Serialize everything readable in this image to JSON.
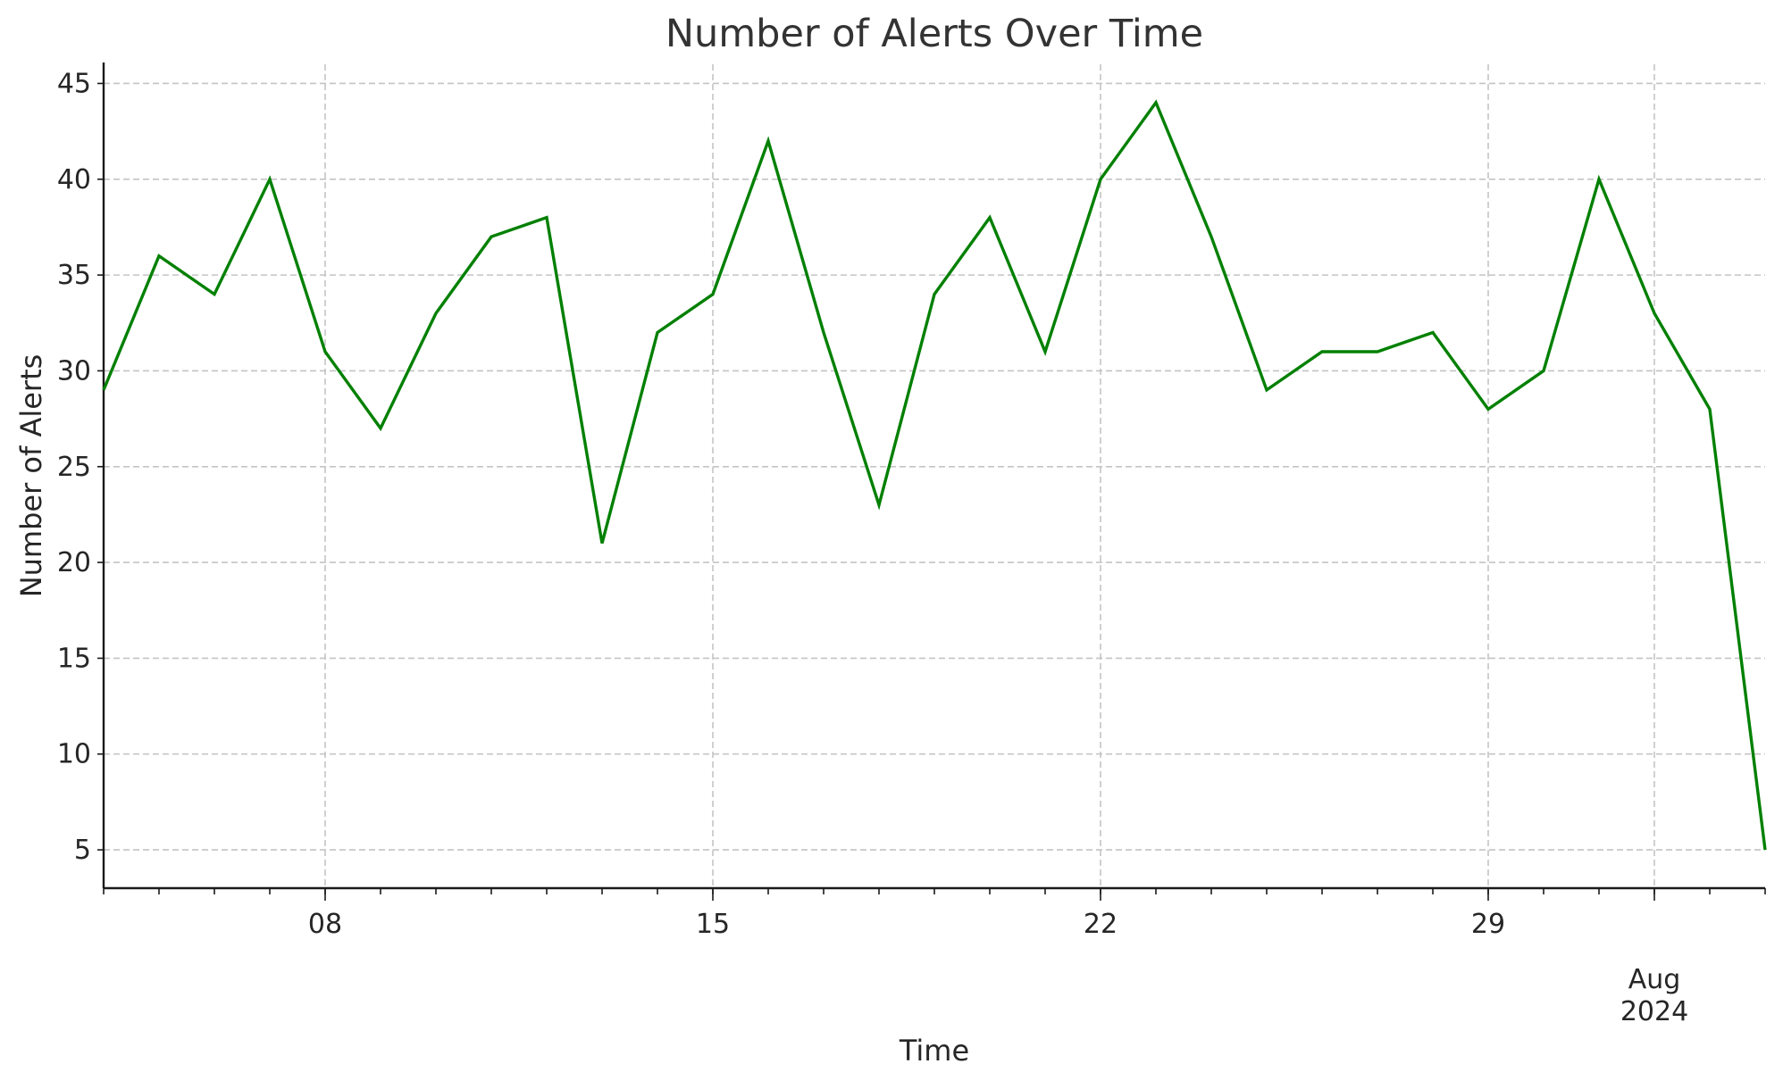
{
  "chart_data": {
    "type": "line",
    "title": "Number of Alerts Over Time",
    "xlabel": "Time",
    "ylabel": "Number of Alerts",
    "x_start_date": "2024-07-04",
    "x_end_date": "2024-08-03",
    "ylim": [
      3,
      46
    ],
    "y_ticks": [
      5,
      10,
      15,
      20,
      25,
      30,
      35,
      40,
      45
    ],
    "x_major_ticks": [
      {
        "date": "2024-07-08",
        "label": "08",
        "sublabel": ""
      },
      {
        "date": "2024-07-15",
        "label": "15",
        "sublabel": ""
      },
      {
        "date": "2024-07-22",
        "label": "22",
        "sublabel": ""
      },
      {
        "date": "2024-07-29",
        "label": "29",
        "sublabel": ""
      },
      {
        "date": "2024-08-01",
        "label": "Aug",
        "sublabel": "2024"
      }
    ],
    "grid": true,
    "series": [
      {
        "color": "#008000",
        "x": [
          "2024-07-04",
          "2024-07-05",
          "2024-07-06",
          "2024-07-07",
          "2024-07-08",
          "2024-07-09",
          "2024-07-10",
          "2024-07-11",
          "2024-07-12",
          "2024-07-13",
          "2024-07-14",
          "2024-07-15",
          "2024-07-16",
          "2024-07-17",
          "2024-07-18",
          "2024-07-19",
          "2024-07-20",
          "2024-07-21",
          "2024-07-22",
          "2024-07-23",
          "2024-07-24",
          "2024-07-25",
          "2024-07-26",
          "2024-07-27",
          "2024-07-28",
          "2024-07-29",
          "2024-07-30",
          "2024-07-31",
          "2024-08-01",
          "2024-08-02",
          "2024-08-03"
        ],
        "values": [
          29,
          36,
          34,
          40,
          31,
          27,
          33,
          37,
          38,
          21,
          32,
          34,
          42,
          32,
          23,
          34,
          38,
          31,
          40,
          44,
          37,
          29,
          31,
          31,
          32,
          28,
          30,
          40,
          33,
          28,
          5
        ]
      }
    ]
  }
}
